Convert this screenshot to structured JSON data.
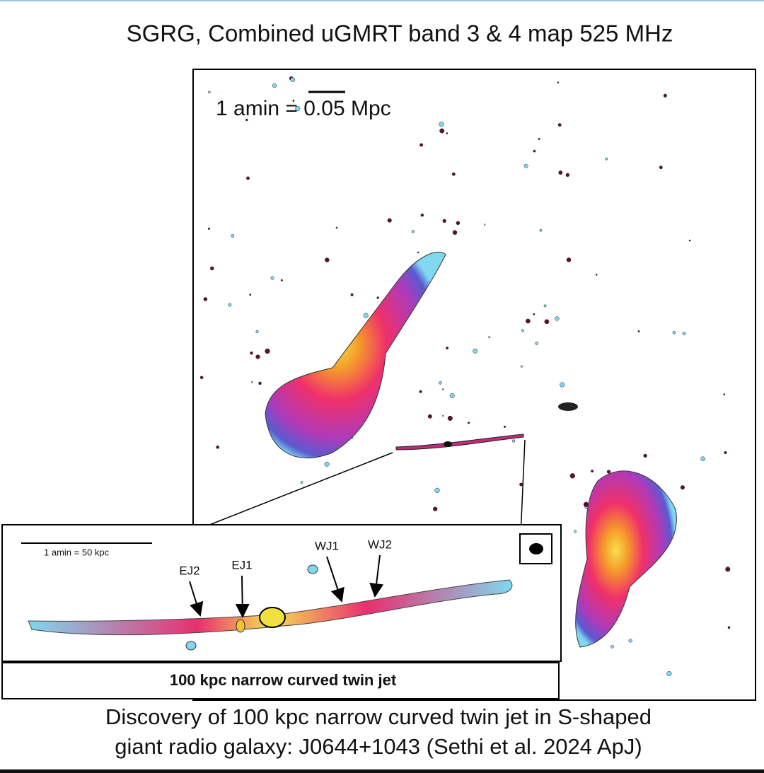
{
  "header": {
    "title": "SGRG, Combined uGMRT band 3 & 4 map  525 MHz"
  },
  "map": {
    "scale_label": "1 amin = 0.05 Mpc"
  },
  "inset": {
    "scale_label": "1 amin = 50 kpc",
    "labels": [
      "EJ2",
      "EJ1",
      "WJ1",
      "WJ2"
    ],
    "caption": "100 kpc narrow curved twin jet"
  },
  "caption": {
    "lines": [
      "Discovery of 100 kpc narrow curved twin jet in S-shaped",
      "giant radio galaxy: J0644+1043 (Sethi et al. 2024 ApJ)"
    ]
  }
}
